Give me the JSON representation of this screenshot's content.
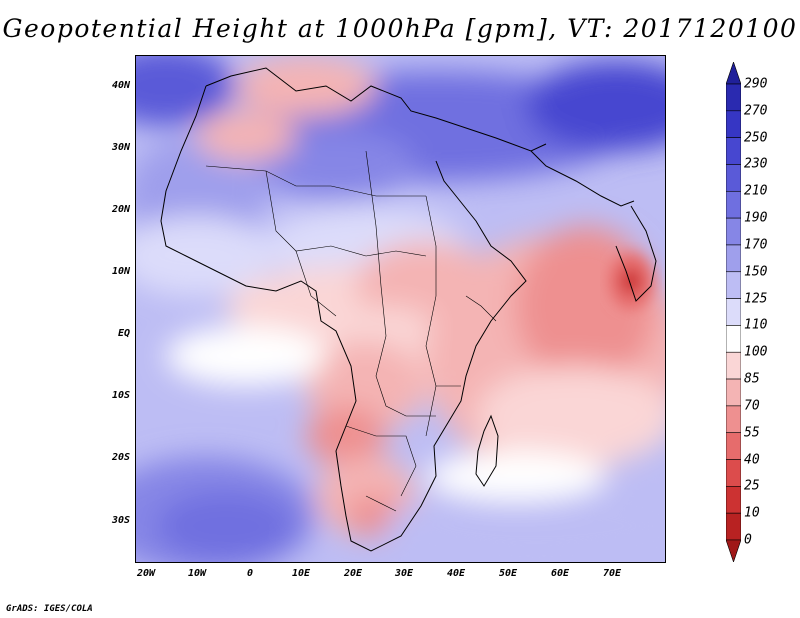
{
  "title": "Geopotential Height at 1000hPa [gpm], VT: 2017120100",
  "credit": "GrADS: IGES/COLA",
  "lat_labels": [
    "40N",
    "30N",
    "20N",
    "10N",
    "EQ",
    "10S",
    "20S",
    "30S"
  ],
  "lon_labels": [
    "20W",
    "10W",
    "0",
    "10E",
    "20E",
    "30E",
    "40E",
    "50E",
    "60E",
    "70E"
  ],
  "colorbar": {
    "labels": [
      "290",
      "270",
      "250",
      "230",
      "210",
      "190",
      "170",
      "150",
      "125",
      "110",
      "100",
      "85",
      "70",
      "55",
      "40",
      "25",
      "10",
      "0"
    ],
    "colors": [
      "#20209a",
      "#2a2ab0",
      "#3636c4",
      "#4747d0",
      "#5a5ad8",
      "#6f6fe0",
      "#8686e6",
      "#9f9fec",
      "#bdbdf4",
      "#dcdcfa",
      "#ffffff",
      "#fad6d6",
      "#f4b4b4",
      "#ee9090",
      "#e66c6c",
      "#dc4c4c",
      "#cc3232",
      "#b82222",
      "#a01818"
    ]
  },
  "map": {
    "region": "Africa and western Indian Ocean",
    "lon_range": [
      -22,
      80
    ],
    "lat_range": [
      -37,
      45
    ],
    "highs": [
      "North Atlantic / West Africa",
      "Mediterranean east / Middle East",
      "South Atlantic",
      "Southwest Indian Ocean"
    ],
    "lows": [
      "Sahara west",
      "Central Africa",
      "Southern Africa interior",
      "Arabian Sea / Indian Ocean (minimum near 73E 10N)"
    ]
  }
}
